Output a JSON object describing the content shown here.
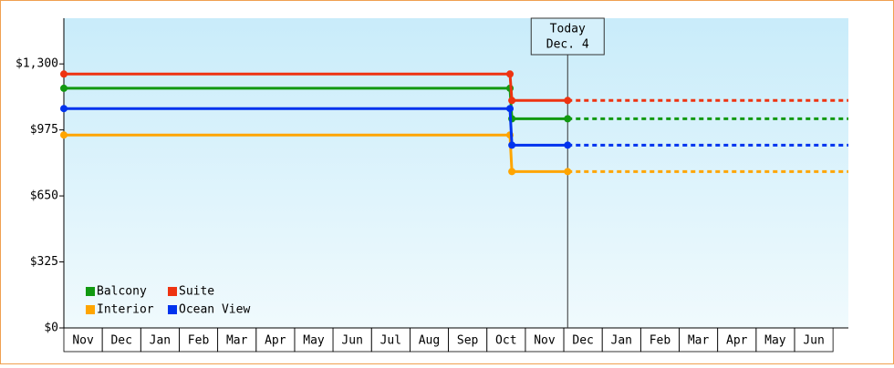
{
  "chart_data": {
    "type": "step",
    "categories": [
      "Nov",
      "Dec",
      "Jan",
      "Feb",
      "Mar",
      "Apr",
      "May",
      "Jun",
      "Jul",
      "Aug",
      "Sep",
      "Oct",
      "Nov",
      "Dec",
      "Jan",
      "Feb",
      "Mar",
      "Apr",
      "May",
      "Jun"
    ],
    "xlim": [
      0,
      20.4
    ],
    "ylim": [
      0,
      1525
    ],
    "yticks": [
      {
        "value": 0,
        "label": "$0"
      },
      {
        "value": 325,
        "label": "$325"
      },
      {
        "value": 650,
        "label": "$650"
      },
      {
        "value": 975,
        "label": "$975"
      },
      {
        "value": 1300,
        "label": "$1,300"
      }
    ],
    "series": [
      {
        "name": "Balcony",
        "color": "#119911",
        "x": [
          0,
          11.6,
          11.65,
          13.1
        ],
        "values": [
          1180,
          1180,
          1030,
          1030
        ]
      },
      {
        "name": "Suite",
        "color": "#ee3311",
        "x": [
          0,
          11.6,
          11.65,
          13.1
        ],
        "values": [
          1250,
          1250,
          1120,
          1120
        ]
      },
      {
        "name": "Interior",
        "color": "#ffa500",
        "x": [
          0,
          11.6,
          11.65,
          13.1
        ],
        "values": [
          950,
          950,
          770,
          770
        ]
      },
      {
        "name": "Ocean View",
        "color": "#0033ee",
        "x": [
          0,
          11.6,
          11.65,
          13.1
        ],
        "values": [
          1080,
          1080,
          900,
          900
        ]
      }
    ],
    "projection": "dashed",
    "annotation": {
      "text": [
        "Today",
        "Dec. 4"
      ],
      "x": 13.1
    },
    "legend": "lower left"
  }
}
